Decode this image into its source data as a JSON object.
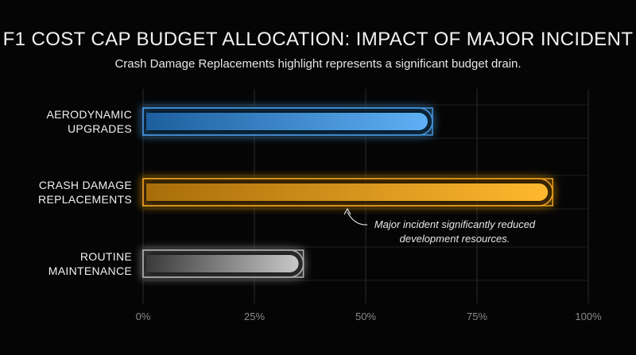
{
  "chart_data": {
    "type": "bar",
    "orientation": "horizontal",
    "title": "F1 COST CAP BUDGET ALLOCATION: IMPACT OF MAJOR INCIDENT",
    "subtitle": "Crash Damage Replacements highlight represents a significant budget drain.",
    "categories": [
      [
        "AERODYNAMIC",
        "UPGRADES"
      ],
      [
        "CRASH DAMAGE",
        "REPLACEMENTS"
      ],
      [
        "ROUTINE",
        "MAINTENANCE"
      ]
    ],
    "values": [
      65,
      92,
      36
    ],
    "colors": [
      "#4a9ee8",
      "#f5a623",
      "#b5b5b5"
    ],
    "xlim": [
      0,
      100
    ],
    "xticks": [
      0,
      25,
      50,
      75,
      100
    ],
    "xtick_labels": [
      "0%",
      "25%",
      "50%",
      "75%",
      "100%"
    ],
    "grid": true,
    "annotation": {
      "category_index": 1,
      "lines": [
        "Major incident significantly reduced",
        "development resources."
      ]
    }
  }
}
